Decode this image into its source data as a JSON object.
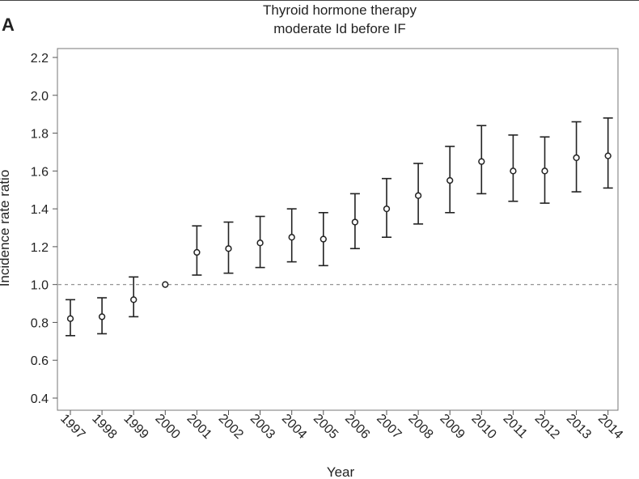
{
  "panel_label": "A",
  "chart_data": {
    "type": "scatter",
    "subtype": "point-with-error-bars",
    "title": "Thyroid hormone therapy",
    "subtitle": "moderate Id before IF",
    "xlabel": "Year",
    "ylabel": "Incidence rate ratio",
    "ylim": [
      0.35,
      2.25
    ],
    "yticks": [
      0.4,
      0.6,
      0.8,
      1.0,
      1.2,
      1.4,
      1.6,
      1.8,
      2.0,
      2.2
    ],
    "ytick_labels": [
      "0.4",
      "0.6",
      "0.8",
      "1.0",
      "1.2",
      "1.4",
      "1.6",
      "1.8",
      "2.0",
      "2.2"
    ],
    "reference_line": 1.0,
    "grid": false,
    "categories": [
      "1997",
      "1998",
      "1999",
      "2000",
      "2001",
      "2002",
      "2003",
      "2004",
      "2005",
      "2006",
      "2007",
      "2008",
      "2009",
      "2010",
      "2011",
      "2012",
      "2013",
      "2014"
    ],
    "series": [
      {
        "values": [
          0.82,
          0.83,
          0.92,
          1.0,
          1.17,
          1.19,
          1.22,
          1.25,
          1.24,
          1.33,
          1.4,
          1.47,
          1.55,
          1.65,
          1.6,
          1.6,
          1.67,
          1.68
        ],
        "lower": [
          0.73,
          0.74,
          0.83,
          1.0,
          1.05,
          1.06,
          1.09,
          1.12,
          1.1,
          1.19,
          1.25,
          1.32,
          1.38,
          1.48,
          1.44,
          1.43,
          1.49,
          1.51
        ],
        "upper": [
          0.92,
          0.93,
          1.04,
          1.0,
          1.31,
          1.33,
          1.36,
          1.4,
          1.38,
          1.48,
          1.56,
          1.64,
          1.73,
          1.84,
          1.79,
          1.78,
          1.86,
          1.88
        ]
      }
    ]
  }
}
